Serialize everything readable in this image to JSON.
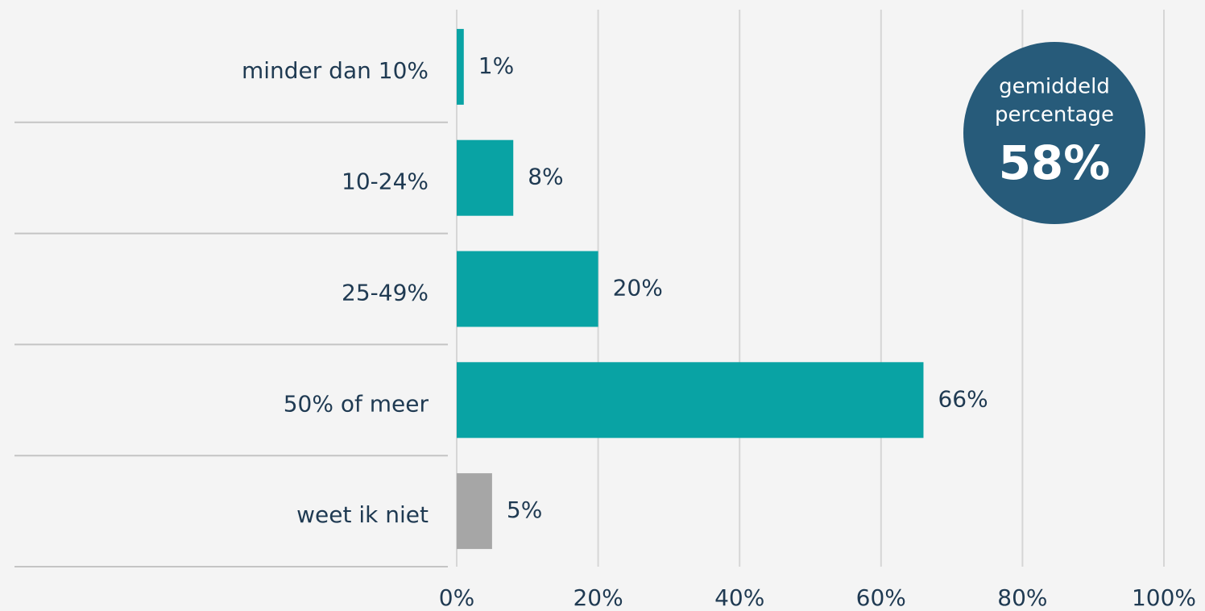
{
  "chart_data": {
    "type": "hbar",
    "categories": [
      "minder dan 10%",
      "10-24%",
      "25-49%",
      "50% of meer",
      "weet ik niet"
    ],
    "values": [
      1,
      8,
      20,
      66,
      5
    ],
    "value_labels": [
      "1%",
      "8%",
      "20%",
      "66%",
      "5%"
    ],
    "colors": [
      "#09a3a4",
      "#09a3a4",
      "#09a3a4",
      "#09a3a4",
      "#a6a6a6"
    ],
    "xlim": [
      0,
      100
    ],
    "xticks": [
      {
        "value": 0,
        "label": "0%"
      },
      {
        "value": 20,
        "label": "20%"
      },
      {
        "value": 40,
        "label": "40%"
      },
      {
        "value": 60,
        "label": "60%"
      },
      {
        "value": 80,
        "label": "80%"
      },
      {
        "value": 100,
        "label": "100%"
      }
    ],
    "grid": true,
    "annotation": {
      "lines": [
        "gemiddeld",
        "percentage"
      ],
      "text": "58%"
    }
  }
}
